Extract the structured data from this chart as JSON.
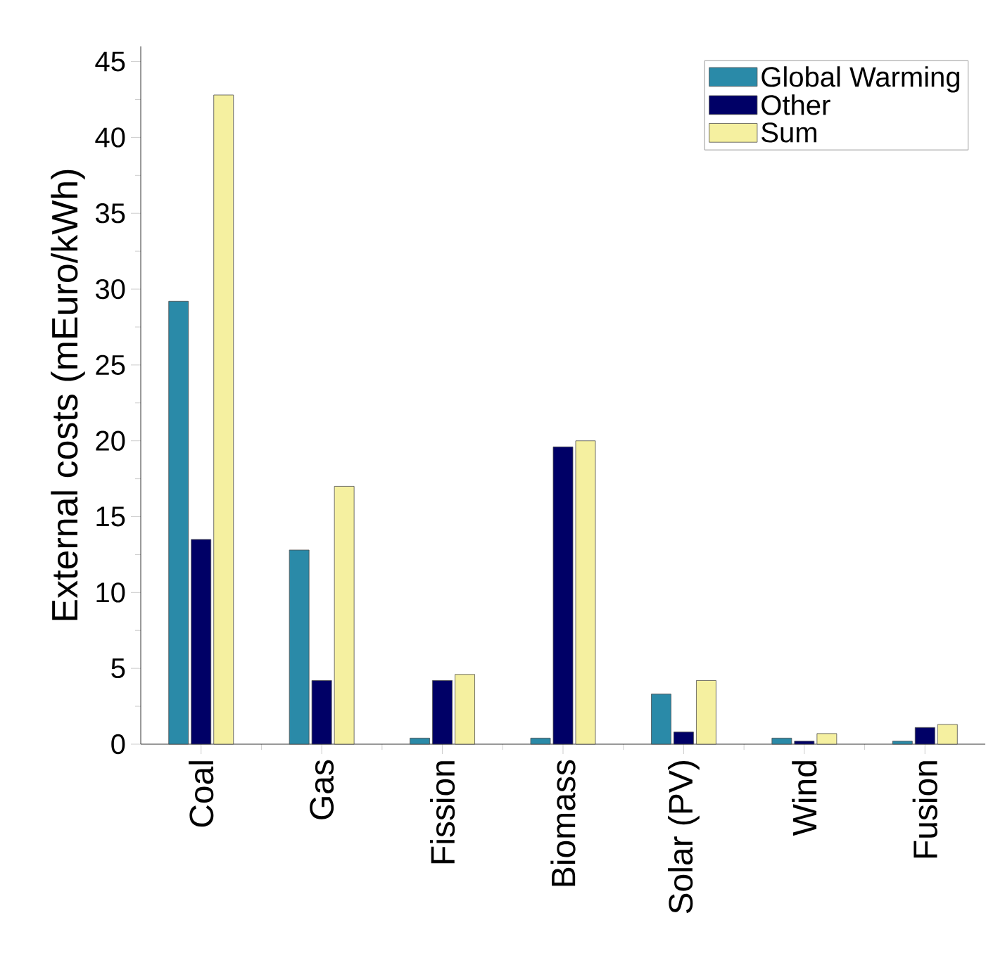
{
  "chart_data": {
    "type": "bar",
    "ylabel": "External costs (mEuro/kWh)",
    "categories": [
      "Coal",
      "Gas",
      "Fission",
      "Biomass",
      "Solar (PV)",
      "Wind",
      "Fusion"
    ],
    "series": [
      {
        "name": "Global Warming",
        "color": "#2a8aa8",
        "values": [
          29.2,
          12.8,
          0.4,
          0.4,
          3.3,
          0.4,
          0.2
        ]
      },
      {
        "name": "Other",
        "color": "#000066",
        "values": [
          13.5,
          4.2,
          4.2,
          19.6,
          0.8,
          0.2,
          1.1
        ]
      },
      {
        "name": "Sum",
        "color": "#f5f0a0",
        "values": [
          42.8,
          17.0,
          4.6,
          20.0,
          4.2,
          0.7,
          1.3
        ]
      }
    ],
    "ylim": [
      0,
      46
    ],
    "yticks": [
      0,
      5,
      10,
      15,
      20,
      25,
      30,
      35,
      40,
      45
    ],
    "legend": "top right",
    "grid": false
  }
}
